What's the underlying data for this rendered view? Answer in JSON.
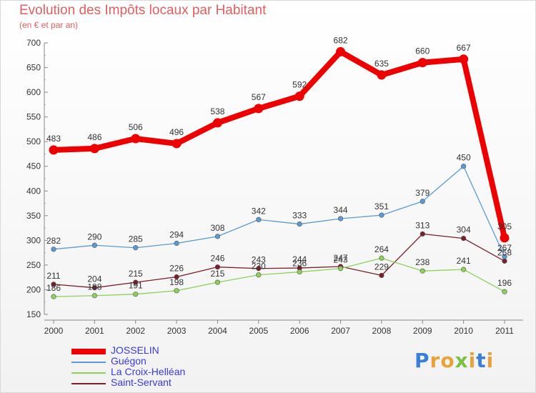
{
  "title": "Evolution des Impôts locaux par Habitant",
  "subtitle": "(en € et par an)",
  "logo": {
    "letters": [
      "P",
      "r",
      "o",
      "x",
      "i",
      "t",
      "i"
    ],
    "colors": [
      "#3a7fd5",
      "#e8a23a",
      "#e8a23a",
      "#7ac143",
      "#e8a23a",
      "#3a7fd5",
      "#e8a23a"
    ]
  },
  "chart_data": {
    "type": "line",
    "x": [
      "2000",
      "2001",
      "2002",
      "2003",
      "2004",
      "2005",
      "2006",
      "2007",
      "2008",
      "2009",
      "2010",
      "2011"
    ],
    "ylim": [
      150,
      700
    ],
    "yticks": [
      "150",
      "200",
      "250",
      "300",
      "350",
      "400",
      "450",
      "500",
      "550",
      "600",
      "650",
      "700"
    ],
    "grid": false,
    "legend_position": "bottom-left",
    "series": [
      {
        "name": "JOSSELIN",
        "color": "#ee0000",
        "values": [
          483,
          486,
          506,
          496,
          538,
          567,
          592,
          682,
          635,
          660,
          667,
          305
        ]
      },
      {
        "name": "Guégon",
        "color": "#5b9bd5",
        "values": [
          282,
          290,
          285,
          294,
          308,
          342,
          333,
          344,
          351,
          379,
          450,
          267
        ]
      },
      {
        "name": "La Croix-Helléan",
        "color": "#8fd05a",
        "values": [
          186,
          188,
          191,
          198,
          215,
          230,
          236,
          243,
          264,
          238,
          241,
          196
        ]
      },
      {
        "name": "Saint-Servant",
        "color": "#7a1f2b",
        "values": [
          211,
          204,
          215,
          226,
          246,
          243,
          244,
          247,
          229,
          313,
          304,
          258
        ]
      }
    ]
  }
}
